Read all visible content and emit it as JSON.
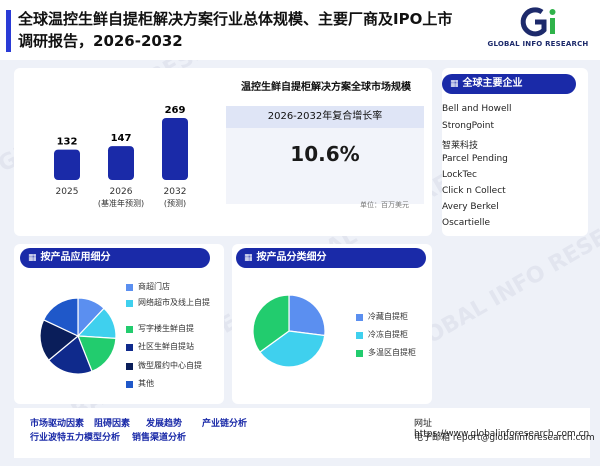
{
  "header": {
    "title": "全球温控生鲜自提柜解决方案行业总体规模、主要厂商及IPO上市调研报告，2026-2032",
    "logo_text": "GLOBAL INFO RESEARCH",
    "watermark": "GLOBAL INFO RESEARCH"
  },
  "market": {
    "title": "温控生鲜自提柜解决方案全球市场规模",
    "cagr_label": "2026-2032年复合增长率",
    "cagr_value": "10.6%",
    "unit": "单位：百万美元"
  },
  "chart_data": {
    "type": "bar",
    "categories": [
      "2025",
      "2026",
      "2032"
    ],
    "category_notes": [
      "",
      "(基准年预测)",
      "(预测)"
    ],
    "values": [
      132,
      147,
      269
    ],
    "color": "#1a2aa8"
  },
  "companies": {
    "header": "全球主要企业",
    "items": [
      "Bell and Howell",
      "StrongPoint",
      "智莱科技",
      "Parcel Pending",
      "LockTec",
      "Click n Collect",
      "Avery Berkel",
      "Oscartielle"
    ]
  },
  "application": {
    "header": "按产品应用细分",
    "items": [
      {
        "label": "商超门店",
        "color": "#5b8ff0"
      },
      {
        "label": "网络超市及线上自提",
        "color": "#3fd0ee"
      },
      {
        "label": "写字楼生鲜自提",
        "color": "#22cc6e"
      },
      {
        "label": "社区生鲜自提站",
        "color": "#0f2a8c"
      },
      {
        "label": "微型履约中心自提",
        "color": "#0a1e5a"
      },
      {
        "label": "其他",
        "color": "#1f58c9"
      }
    ]
  },
  "product_type": {
    "header": "按产品分类细分",
    "items": [
      {
        "label": "冷藏自提柜",
        "color": "#5b8ff0"
      },
      {
        "label": "冷冻自提柜",
        "color": "#3fd0ee"
      },
      {
        "label": "多温区自提柜",
        "color": "#22cc6e"
      }
    ]
  },
  "footer": {
    "links_row1": [
      "市场驱动因素",
      "阻碍因素",
      "发展趋势",
      "产业链分析"
    ],
    "links_row2": [
      "行业波特五力模型分析",
      "销售渠道分析"
    ],
    "website": "网址 https://www.globalinforesearch.com.cn",
    "email": "电子邮箱 report@globalinforesearch.com"
  }
}
